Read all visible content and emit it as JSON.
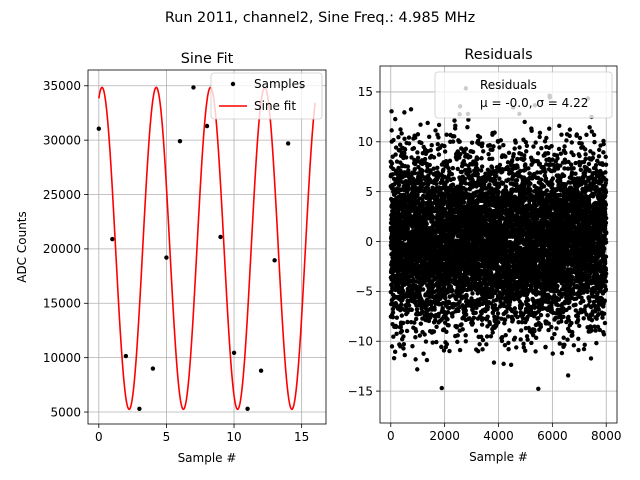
{
  "figure": {
    "suptitle": "Run 2011, channel2, Sine Freq.: 4.985 MHz"
  },
  "chart_data": [
    {
      "type": "scatter",
      "title": "Sine Fit",
      "xlabel": "Sample #",
      "ylabel": "ADC Counts",
      "xlim": [
        -0.8,
        16.8
      ],
      "ylim": [
        3900,
        36450
      ],
      "xticks": [
        0,
        5,
        10,
        15
      ],
      "yticks": [
        5000,
        10000,
        15000,
        20000,
        25000,
        30000,
        35000
      ],
      "grid": true,
      "legend": {
        "position": "top-right",
        "entries": [
          {
            "label": "Samples",
            "marker": "dot",
            "color": "#000000"
          },
          {
            "label": "Sine fit",
            "marker": "line",
            "color": "#ff0000"
          }
        ]
      },
      "series": [
        {
          "name": "Samples",
          "kind": "points",
          "color": "#000000",
          "x": [
            0,
            1,
            2,
            3,
            4,
            5,
            6,
            7,
            8,
            9,
            10,
            11,
            12,
            13,
            14,
            15
          ],
          "y": [
            31050,
            20900,
            10150,
            5300,
            9000,
            19200,
            29900,
            34850,
            31300,
            21100,
            10450,
            5300,
            8800,
            18950,
            29700,
            34900
          ]
        },
        {
          "name": "Sine fit",
          "kind": "line",
          "color": "#ff0000",
          "model": {
            "offset": 20050,
            "amplitude": 14800,
            "cycles_per_sample": 0.2493,
            "phase_rad": 1.2
          },
          "x_range": [
            0,
            16
          ]
        }
      ]
    },
    {
      "type": "scatter",
      "title": "Residuals",
      "xlabel": "Sample #",
      "ylabel": "",
      "xlim": [
        -400,
        8400
      ],
      "ylim": [
        -18.2,
        17.6
      ],
      "xticks": [
        0,
        2000,
        4000,
        6000,
        8000
      ],
      "yticks": [
        -15,
        -10,
        -5,
        0,
        5,
        10,
        15
      ],
      "grid": true,
      "legend": {
        "position": "top-right",
        "entries": [
          {
            "label": "Residuals",
            "marker": "none",
            "color": "#000000"
          },
          {
            "label": "μ = -0.0, σ = 4.22",
            "marker": "none",
            "color": "#000000"
          }
        ]
      },
      "series": [
        {
          "name": "Residuals",
          "kind": "points",
          "color": "#000000",
          "n_points": 8000,
          "mean": 0.0,
          "std": 4.22,
          "min": -16.8,
          "max": 15.8,
          "x_range": [
            0,
            7999
          ]
        }
      ]
    }
  ]
}
